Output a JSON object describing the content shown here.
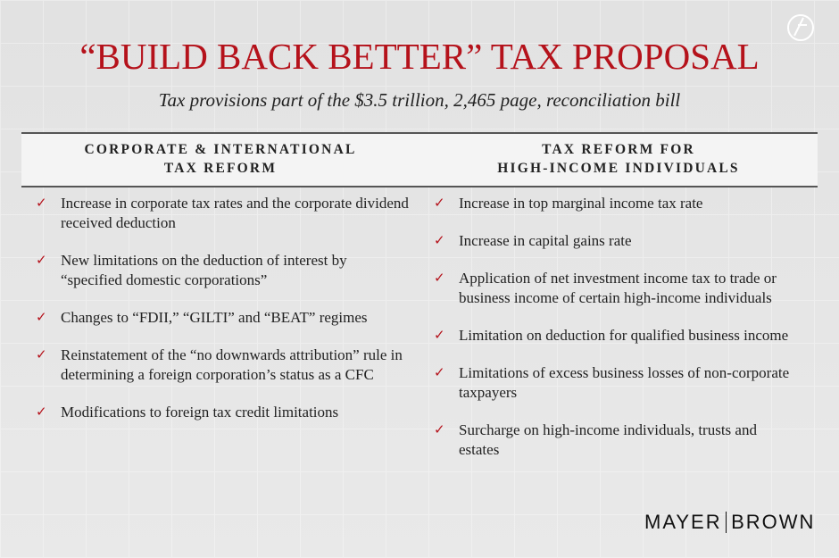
{
  "title": "“BUILD BACK BETTER” TAX PROPOSAL",
  "subtitle": "Tax provisions part of the $3.5 trillion, 2,465 page, reconciliation bill",
  "columns": [
    {
      "heading": [
        "CORPORATE & INTERNATIONAL",
        "TAX REFORM"
      ],
      "items": [
        "Increase in corporate tax rates and the corporate dividend received deduction",
        "New limitations on the deduction of interest by “specified domestic corporations”",
        "Changes to “FDII,” “GILTI” and “BEAT” regimes",
        "Reinstatement of the “no downwards attribution” rule in determining a foreign corporation’s status as a CFC",
        "Modifications to foreign tax credit limitations"
      ]
    },
    {
      "heading": [
        "TAX REFORM FOR",
        "HIGH-INCOME INDIVIDUALS"
      ],
      "items": [
        "Increase in top marginal income tax rate",
        "Increase in capital gains rate",
        "Application of net investment income tax to trade or business income of certain high-income individuals",
        "Limitation on deduction for qualified business income",
        "Limitations of excess business losses of non-corporate taxpayers",
        "Surcharge on high-income individuals, trusts and estates"
      ]
    }
  ],
  "logo": {
    "left": "MAYER",
    "right": "BROWN"
  }
}
